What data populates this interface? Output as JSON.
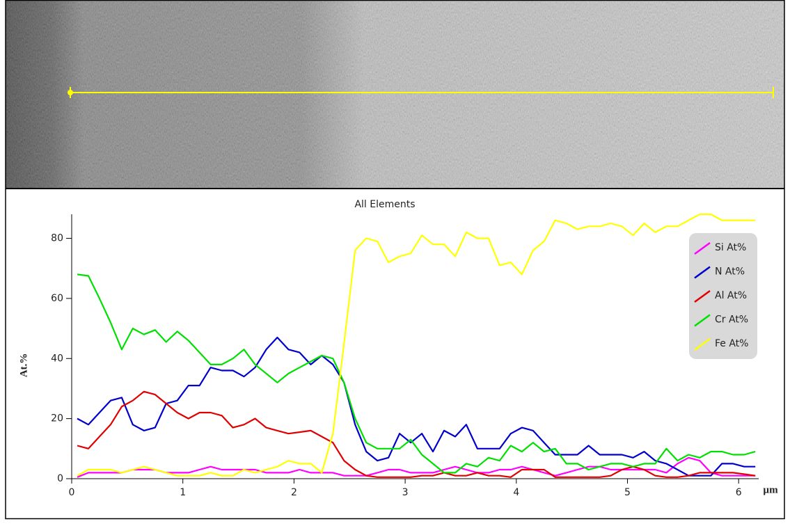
{
  "chart_data": {
    "type": "line",
    "title": "All Elements",
    "y_label": "At.%",
    "x_label": "µm",
    "x": [
      0.05,
      0.15,
      0.25,
      0.35,
      0.45,
      0.55,
      0.65,
      0.75,
      0.85,
      0.95,
      1.05,
      1.15,
      1.25,
      1.35,
      1.45,
      1.55,
      1.65,
      1.75,
      1.85,
      1.95,
      2.05,
      2.15,
      2.25,
      2.35,
      2.45,
      2.55,
      2.65,
      2.75,
      2.85,
      2.95,
      3.05,
      3.15,
      3.25,
      3.35,
      3.45,
      3.55,
      3.65,
      3.75,
      3.85,
      3.95,
      4.05,
      4.15,
      4.25,
      4.35,
      4.45,
      4.55,
      4.65,
      4.75,
      4.85,
      4.95,
      5.05,
      5.15,
      5.25,
      5.35,
      5.45,
      5.55,
      5.65,
      5.75,
      5.85,
      5.95,
      6.05,
      6.15
    ],
    "series": [
      {
        "name": "Si At%",
        "color": "#ff00ff",
        "values": [
          0.5,
          2,
          2,
          2,
          2,
          3,
          3,
          3,
          2,
          2,
          2,
          3,
          4,
          3,
          3,
          3,
          3,
          2,
          2,
          2,
          3,
          2,
          2,
          2,
          1,
          1,
          1,
          2,
          3,
          3,
          2,
          2,
          2,
          3,
          4,
          3,
          2,
          2,
          3,
          3,
          4,
          3,
          2,
          1,
          2,
          3,
          4,
          4,
          3,
          3,
          3,
          3,
          3,
          2,
          5,
          7,
          6,
          2,
          1,
          1,
          1,
          1
        ]
      },
      {
        "name": "N At%",
        "color": "#0000cc",
        "values": [
          20,
          18,
          22,
          26,
          27,
          18,
          16,
          17,
          25,
          26,
          31,
          31,
          37,
          36,
          36,
          34,
          37,
          43,
          47,
          43,
          42,
          38,
          41,
          38,
          32,
          18,
          9,
          6,
          7,
          15,
          12,
          15,
          9,
          16,
          14,
          18,
          10,
          10,
          10,
          15,
          17,
          16,
          12,
          8,
          8,
          8,
          11,
          8,
          8,
          8,
          7,
          9,
          6,
          5,
          3,
          1,
          1,
          1,
          5,
          5,
          4,
          4
        ]
      },
      {
        "name": "Al At%",
        "color": "#e00000",
        "values": [
          11,
          10,
          14,
          18,
          24,
          26,
          29,
          28,
          25,
          22,
          20,
          22,
          22,
          21,
          17,
          18,
          20,
          17,
          16,
          15,
          15.5,
          16,
          14,
          12,
          6,
          3,
          1,
          0.5,
          0.5,
          0.5,
          0.5,
          1,
          1,
          2,
          1,
          1,
          2,
          1,
          1,
          0.5,
          3,
          3,
          3,
          0.5,
          0.5,
          0.5,
          0.5,
          0.5,
          1,
          3,
          4,
          3,
          1,
          0.5,
          0.5,
          1,
          2,
          2,
          2,
          2,
          1.5,
          1
        ]
      },
      {
        "name": "Cr At%",
        "color": "#00e000",
        "values": [
          68,
          67.5,
          60,
          52,
          43,
          50,
          48,
          49.5,
          45.5,
          49,
          46,
          42,
          38,
          38,
          40,
          43,
          38,
          35,
          32,
          35,
          37,
          39,
          41,
          40,
          32,
          20,
          12,
          10,
          10,
          10,
          13,
          8,
          5,
          2,
          2,
          5,
          4,
          7,
          6,
          11,
          9,
          12,
          9,
          10,
          5,
          5,
          3,
          4,
          5,
          5,
          4,
          5,
          5,
          10,
          6,
          8,
          7,
          9,
          9,
          8,
          8,
          9
        ]
      },
      {
        "name": "Fe At%",
        "color": "#ffff00",
        "values": [
          1,
          3,
          3,
          3,
          2,
          3,
          4,
          3,
          2,
          1,
          1,
          1,
          2,
          1,
          1,
          3,
          2,
          3,
          4,
          6,
          5,
          5,
          2,
          15,
          45,
          76,
          80,
          79,
          72,
          74,
          75,
          81,
          78,
          78,
          74,
          82,
          80,
          80,
          71,
          72,
          68,
          76,
          79,
          86,
          85,
          83,
          84,
          84,
          85,
          84,
          81,
          85,
          82,
          84,
          84,
          86,
          88,
          88,
          86,
          86,
          86,
          86
        ]
      }
    ],
    "xlim": [
      0,
      6.2
    ],
    "ylim": [
      0,
      88
    ],
    "xticks": [
      0,
      1,
      2,
      3,
      4,
      5,
      6
    ],
    "yticks": [
      0,
      20,
      40,
      60,
      80
    ],
    "legend": "upper right"
  }
}
